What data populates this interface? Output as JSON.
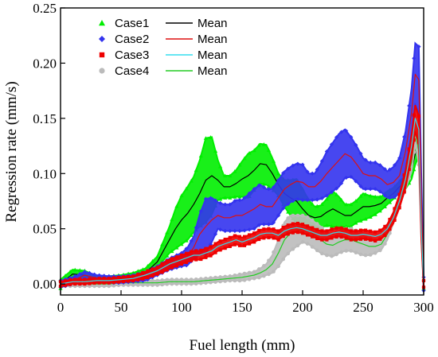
{
  "chart_data": {
    "type": "scatter",
    "xlabel": "Fuel length (mm)",
    "ylabel": "Regression rate (mm/s)",
    "xlim": [
      0,
      300
    ],
    "ylim": [
      -0.01,
      0.25
    ],
    "xticks": [
      0,
      50,
      100,
      150,
      200,
      250,
      300
    ],
    "yticks": [
      0.0,
      0.05,
      0.1,
      0.15,
      0.2,
      0.25
    ],
    "ytick_labels": [
      "0.00",
      "0.05",
      "0.10",
      "0.15",
      "0.20",
      "0.25"
    ],
    "grid": false,
    "legend_position": "top-left",
    "series": [
      {
        "name": "Case1",
        "mean_name": "Mean",
        "marker": "triangle",
        "color": "#00ee00",
        "mean_color": "#000000",
        "x": [
          0,
          10,
          20,
          30,
          40,
          50,
          60,
          70,
          80,
          90,
          95,
          100,
          105,
          110,
          115,
          120,
          125,
          130,
          135,
          140,
          145,
          150,
          155,
          160,
          165,
          170,
          175,
          180,
          185,
          190,
          195,
          200,
          205,
          210,
          215,
          220,
          225,
          230,
          235,
          240,
          245,
          250,
          255,
          260,
          265,
          270,
          275,
          280,
          285,
          290,
          293,
          296,
          298,
          300
        ],
        "mean": [
          0.0,
          0.009,
          0.008,
          0.004,
          0.004,
          0.005,
          0.007,
          0.01,
          0.02,
          0.04,
          0.05,
          0.058,
          0.064,
          0.072,
          0.082,
          0.094,
          0.098,
          0.094,
          0.088,
          0.088,
          0.091,
          0.095,
          0.098,
          0.103,
          0.109,
          0.108,
          0.1,
          0.09,
          0.082,
          0.078,
          0.075,
          0.068,
          0.062,
          0.06,
          0.061,
          0.065,
          0.068,
          0.065,
          0.062,
          0.062,
          0.066,
          0.07,
          0.07,
          0.071,
          0.073,
          0.078,
          0.082,
          0.088,
          0.092,
          0.103,
          0.118,
          0.128,
          0.06,
          0.0
        ],
        "spread": [
          0.004,
          0.004,
          0.004,
          0.003,
          0.003,
          0.003,
          0.003,
          0.004,
          0.005,
          0.012,
          0.018,
          0.022,
          0.024,
          0.025,
          0.03,
          0.038,
          0.035,
          0.018,
          0.01,
          0.01,
          0.012,
          0.016,
          0.02,
          0.018,
          0.018,
          0.018,
          0.014,
          0.01,
          0.012,
          0.016,
          0.02,
          0.018,
          0.014,
          0.01,
          0.01,
          0.012,
          0.016,
          0.014,
          0.01,
          0.01,
          0.01,
          0.012,
          0.01,
          0.008,
          0.006,
          0.006,
          0.005,
          0.005,
          0.006,
          0.008,
          0.01,
          0.012,
          0.01,
          0.004
        ]
      },
      {
        "name": "Case2",
        "mean_name": "Mean",
        "marker": "diamond",
        "color": "#3333ee",
        "mean_color": "#dd1111",
        "x": [
          0,
          10,
          20,
          30,
          40,
          50,
          60,
          70,
          80,
          90,
          100,
          105,
          110,
          115,
          120,
          125,
          130,
          135,
          140,
          145,
          150,
          155,
          160,
          165,
          170,
          175,
          180,
          185,
          190,
          195,
          200,
          205,
          210,
          215,
          220,
          225,
          230,
          235,
          240,
          245,
          250,
          255,
          260,
          265,
          270,
          275,
          280,
          285,
          290,
          293,
          296,
          298,
          300
        ],
        "mean": [
          0.0,
          0.003,
          0.008,
          0.005,
          0.004,
          0.004,
          0.005,
          0.007,
          0.012,
          0.018,
          0.022,
          0.025,
          0.033,
          0.045,
          0.052,
          0.058,
          0.062,
          0.06,
          0.06,
          0.062,
          0.062,
          0.065,
          0.068,
          0.072,
          0.07,
          0.07,
          0.078,
          0.086,
          0.09,
          0.093,
          0.092,
          0.088,
          0.088,
          0.093,
          0.1,
          0.106,
          0.112,
          0.118,
          0.115,
          0.108,
          0.1,
          0.098,
          0.098,
          0.095,
          0.09,
          0.092,
          0.098,
          0.12,
          0.155,
          0.19,
          0.185,
          0.08,
          0.0
        ],
        "spread": [
          0.003,
          0.003,
          0.003,
          0.003,
          0.003,
          0.003,
          0.003,
          0.004,
          0.004,
          0.005,
          0.006,
          0.008,
          0.01,
          0.018,
          0.025,
          0.02,
          0.012,
          0.012,
          0.012,
          0.014,
          0.014,
          0.016,
          0.018,
          0.018,
          0.016,
          0.016,
          0.016,
          0.016,
          0.016,
          0.016,
          0.016,
          0.012,
          0.012,
          0.016,
          0.02,
          0.022,
          0.024,
          0.022,
          0.018,
          0.016,
          0.014,
          0.012,
          0.012,
          0.012,
          0.012,
          0.014,
          0.016,
          0.018,
          0.022,
          0.028,
          0.03,
          0.02,
          0.006
        ]
      },
      {
        "name": "Case3",
        "mean_name": "Mean",
        "marker": "square",
        "color": "#ee0000",
        "mean_color": "#33ddee",
        "x": [
          0,
          10,
          20,
          30,
          40,
          50,
          60,
          70,
          80,
          85,
          90,
          95,
          100,
          105,
          110,
          115,
          120,
          125,
          130,
          135,
          140,
          145,
          150,
          155,
          160,
          165,
          170,
          175,
          180,
          185,
          190,
          195,
          200,
          205,
          210,
          215,
          220,
          225,
          230,
          235,
          240,
          245,
          250,
          255,
          260,
          265,
          270,
          275,
          280,
          285,
          290,
          293,
          296,
          298,
          300
        ],
        "mean": [
          0.0,
          0.002,
          0.002,
          0.003,
          0.003,
          0.004,
          0.005,
          0.008,
          0.012,
          0.015,
          0.018,
          0.02,
          0.022,
          0.024,
          0.026,
          0.026,
          0.028,
          0.03,
          0.034,
          0.036,
          0.038,
          0.04,
          0.038,
          0.04,
          0.042,
          0.045,
          0.046,
          0.046,
          0.044,
          0.048,
          0.05,
          0.051,
          0.05,
          0.048,
          0.046,
          0.044,
          0.044,
          0.046,
          0.047,
          0.046,
          0.044,
          0.044,
          0.045,
          0.044,
          0.043,
          0.045,
          0.05,
          0.06,
          0.075,
          0.095,
          0.125,
          0.15,
          0.14,
          0.05,
          0.0
        ],
        "spread": [
          0.002,
          0.002,
          0.002,
          0.002,
          0.002,
          0.002,
          0.002,
          0.003,
          0.003,
          0.004,
          0.004,
          0.004,
          0.004,
          0.004,
          0.004,
          0.004,
          0.004,
          0.004,
          0.004,
          0.004,
          0.004,
          0.004,
          0.004,
          0.004,
          0.004,
          0.004,
          0.004,
          0.004,
          0.004,
          0.004,
          0.004,
          0.004,
          0.004,
          0.004,
          0.004,
          0.004,
          0.004,
          0.004,
          0.004,
          0.004,
          0.004,
          0.004,
          0.004,
          0.004,
          0.004,
          0.004,
          0.004,
          0.005,
          0.006,
          0.008,
          0.01,
          0.012,
          0.012,
          0.008,
          0.003
        ]
      },
      {
        "name": "Case4",
        "mean_name": "Mean",
        "marker": "circle",
        "color": "#bbbbbb",
        "mean_color": "#22cc22",
        "x": [
          0,
          10,
          20,
          30,
          40,
          50,
          60,
          70,
          80,
          90,
          100,
          110,
          120,
          130,
          140,
          150,
          160,
          165,
          170,
          175,
          180,
          185,
          190,
          195,
          200,
          205,
          210,
          215,
          220,
          225,
          230,
          235,
          240,
          245,
          250,
          255,
          260,
          265,
          270,
          275,
          280,
          285,
          290,
          293,
          296,
          298,
          300
        ],
        "mean": [
          0.0,
          0.0,
          0.0,
          0.0,
          0.0,
          0.001,
          0.001,
          0.001,
          0.001,
          0.002,
          0.002,
          0.002,
          0.003,
          0.004,
          0.005,
          0.006,
          0.008,
          0.01,
          0.013,
          0.018,
          0.028,
          0.04,
          0.046,
          0.048,
          0.05,
          0.048,
          0.044,
          0.04,
          0.036,
          0.035,
          0.038,
          0.04,
          0.04,
          0.038,
          0.036,
          0.034,
          0.034,
          0.036,
          0.045,
          0.06,
          0.075,
          0.092,
          0.11,
          0.138,
          0.12,
          0.05,
          0.0
        ],
        "spread": [
          0.002,
          0.002,
          0.002,
          0.002,
          0.002,
          0.002,
          0.002,
          0.002,
          0.002,
          0.002,
          0.002,
          0.002,
          0.002,
          0.002,
          0.002,
          0.003,
          0.003,
          0.004,
          0.005,
          0.008,
          0.012,
          0.016,
          0.016,
          0.014,
          0.012,
          0.012,
          0.012,
          0.012,
          0.01,
          0.01,
          0.01,
          0.01,
          0.01,
          0.01,
          0.01,
          0.008,
          0.006,
          0.005,
          0.005,
          0.005,
          0.005,
          0.006,
          0.008,
          0.01,
          0.012,
          0.008,
          0.003
        ]
      }
    ]
  }
}
